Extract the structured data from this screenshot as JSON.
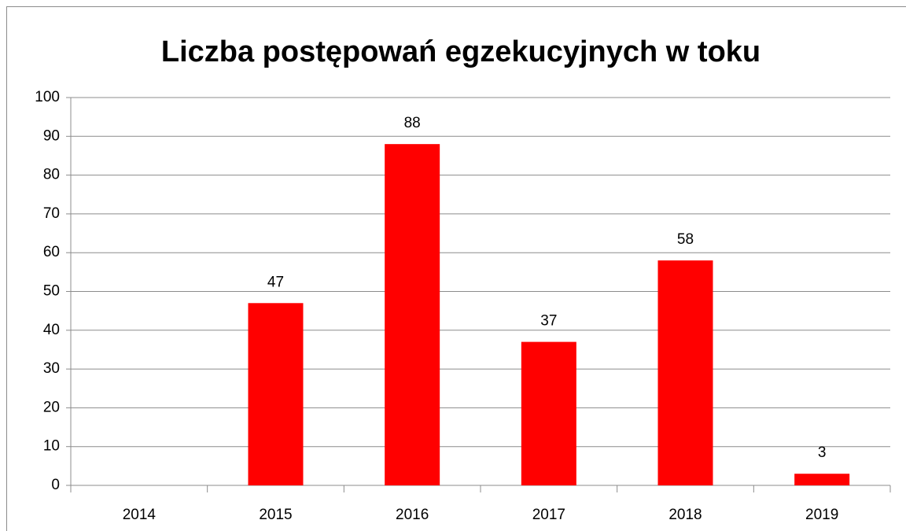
{
  "chart_data": {
    "type": "bar",
    "title": "Liczba postępowań egzekucyjnych w toku",
    "categories": [
      "2014",
      "2015",
      "2016",
      "2017",
      "2018",
      "2019"
    ],
    "values": [
      null,
      47,
      88,
      37,
      58,
      3
    ],
    "color": "#ff0000",
    "ylim": [
      0,
      100
    ],
    "yticks": [
      0,
      10,
      20,
      30,
      40,
      50,
      60,
      70,
      80,
      90,
      100
    ],
    "grid": true
  }
}
